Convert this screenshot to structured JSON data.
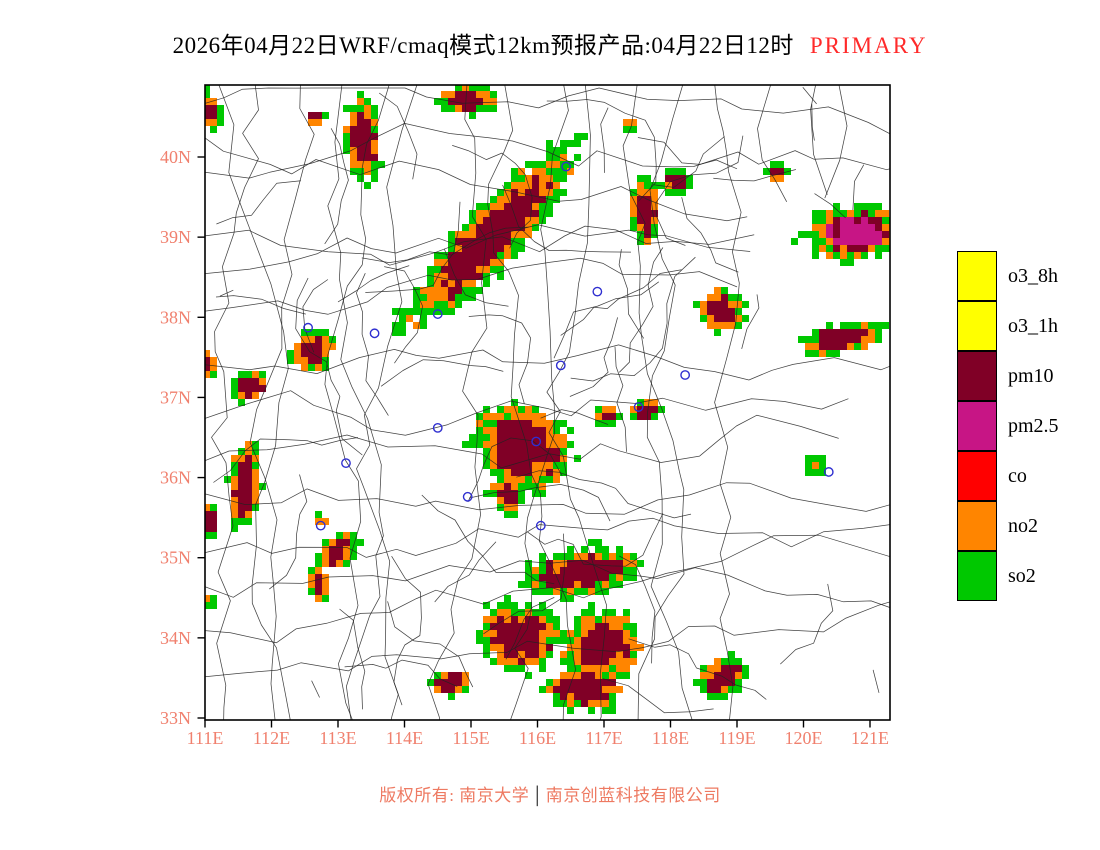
{
  "title": {
    "text": "2026年04月22日WRF/cmaq模式12km预报产品:04月22日12时",
    "tag": "PRIMARY"
  },
  "colors": {
    "title": "#000000",
    "primary_tag": "#ff2a2a",
    "axis_label": "#f0806e",
    "footer": "#ee7a62",
    "footer_separator": "#333333",
    "frame": "#000000",
    "boundary": "#222222",
    "station": "#2f2fd0",
    "map_background": "#ffffff"
  },
  "legend": {
    "items": [
      {
        "label": "o3_8h",
        "color": "#ffff00"
      },
      {
        "label": "o3_1h",
        "color": "#ffff00"
      },
      {
        "label": "pm10",
        "color": "#800026"
      },
      {
        "label": "pm2.5",
        "color": "#c71585"
      },
      {
        "label": "co",
        "color": "#ff0000"
      },
      {
        "label": "no2",
        "color": "#ff8500"
      },
      {
        "label": "so2",
        "color": "#00c800"
      }
    ]
  },
  "footer": {
    "prefix": "版权所有: 南京大学",
    "separator": "│",
    "suffix": "南京创蓝科技有限公司"
  },
  "chart_data": {
    "type": "map",
    "projection": "lonlat",
    "lon_range": [
      111,
      121.3
    ],
    "lat_range": [
      32.97,
      40.9
    ],
    "x_ticks": [
      {
        "lon": 111,
        "label": "111E"
      },
      {
        "lon": 112,
        "label": "112E"
      },
      {
        "lon": 113,
        "label": "113E"
      },
      {
        "lon": 114,
        "label": "114E"
      },
      {
        "lon": 115,
        "label": "115E"
      },
      {
        "lon": 116,
        "label": "116E"
      },
      {
        "lon": 117,
        "label": "117E"
      },
      {
        "lon": 118,
        "label": "118E"
      },
      {
        "lon": 119,
        "label": "119E"
      },
      {
        "lon": 120,
        "label": "120E"
      },
      {
        "lon": 121,
        "label": "121E"
      }
    ],
    "y_ticks": [
      {
        "lat": 40,
        "label": "40N"
      },
      {
        "lat": 39,
        "label": "39N"
      },
      {
        "lat": 38,
        "label": "38N"
      },
      {
        "lat": 37,
        "label": "37N"
      },
      {
        "lat": 36,
        "label": "36N"
      },
      {
        "lat": 35,
        "label": "35N"
      },
      {
        "lat": 34,
        "label": "34N"
      },
      {
        "lat": 33,
        "label": "33N"
      }
    ],
    "pollutant_colors": {
      "o3_8h": "#ffff00",
      "o3_1h": "#ffff00",
      "pm10": "#800026",
      "pm2.5": "#c71585",
      "co": "#ff0000",
      "no2": "#ff8500",
      "so2": "#00c800"
    },
    "region_fields": [
      "lon",
      "lat",
      "rx_deg",
      "ry_deg",
      "rot_deg",
      "primary_pollutant"
    ],
    "regions": [
      [
        115.29,
        38.99,
        1.88,
        0.45,
        -47,
        "pm10"
      ],
      [
        113.38,
        40.21,
        0.68,
        0.26,
        85,
        "pm10"
      ],
      [
        112.68,
        40.49,
        0.15,
        0.13,
        0,
        "pm10"
      ],
      [
        114.95,
        40.72,
        0.48,
        0.22,
        0,
        "pm10"
      ],
      [
        117.62,
        39.34,
        0.57,
        0.2,
        90,
        "pm10"
      ],
      [
        118.1,
        39.69,
        0.24,
        0.2,
        0,
        "pm10"
      ],
      [
        119.59,
        39.81,
        0.18,
        0.15,
        0,
        "pm10"
      ],
      [
        120.75,
        39.05,
        0.78,
        0.42,
        -5,
        "pm2.5"
      ],
      [
        118.77,
        38.08,
        0.36,
        0.33,
        0,
        "pm10"
      ],
      [
        120.58,
        37.73,
        0.68,
        0.24,
        -12,
        "pm10"
      ],
      [
        112.61,
        37.58,
        0.36,
        0.3,
        -30,
        "pm10"
      ],
      [
        111.68,
        37.14,
        0.33,
        0.21,
        -20,
        "pm10"
      ],
      [
        111.6,
        35.93,
        0.68,
        0.24,
        95,
        "pm10"
      ],
      [
        111.06,
        35.47,
        0.3,
        0.14,
        90,
        "pm10"
      ],
      [
        111.05,
        37.43,
        0.24,
        0.11,
        90,
        "pm10"
      ],
      [
        111.09,
        40.57,
        0.33,
        0.15,
        75,
        "pm10"
      ],
      [
        115.78,
        36.38,
        0.78,
        0.65,
        25,
        "pm10"
      ],
      [
        115.53,
        35.77,
        0.33,
        0.24,
        60,
        "pm10"
      ],
      [
        117.06,
        36.77,
        0.21,
        0.15,
        0,
        "pm10"
      ],
      [
        117.63,
        36.83,
        0.27,
        0.17,
        -15,
        "pm10"
      ],
      [
        112.98,
        35.08,
        0.38,
        0.23,
        -40,
        "pm10"
      ],
      [
        112.71,
        34.68,
        0.3,
        0.15,
        80,
        "pm10"
      ],
      [
        116.67,
        34.83,
        0.9,
        0.36,
        -8,
        "pm10"
      ],
      [
        115.72,
        34.01,
        0.63,
        0.51,
        15,
        "pm10"
      ],
      [
        116.97,
        33.91,
        0.63,
        0.54,
        -20,
        "pm10"
      ],
      [
        116.71,
        33.37,
        0.6,
        0.36,
        5,
        "pm10"
      ],
      [
        114.68,
        33.44,
        0.33,
        0.21,
        -10,
        "pm10"
      ],
      [
        118.79,
        33.51,
        0.39,
        0.3,
        -35,
        "pm10"
      ],
      [
        120.19,
        36.14,
        0.18,
        0.15,
        0,
        "no2"
      ],
      [
        117.38,
        40.42,
        0.14,
        0.12,
        0,
        "so2"
      ],
      [
        111.05,
        34.47,
        0.15,
        0.12,
        0,
        "so2"
      ],
      [
        112.76,
        35.46,
        0.12,
        0.11,
        0,
        "so2"
      ]
    ],
    "stations": [
      [
        116.43,
        39.88
      ],
      [
        114.5,
        38.04
      ],
      [
        113.55,
        37.8
      ],
      [
        116.9,
        38.32
      ],
      [
        112.55,
        37.87
      ],
      [
        116.35,
        37.4
      ],
      [
        118.22,
        37.28
      ],
      [
        117.52,
        36.88
      ],
      [
        115.98,
        36.45
      ],
      [
        114.5,
        36.62
      ],
      [
        113.12,
        36.18
      ],
      [
        114.95,
        35.76
      ],
      [
        112.74,
        35.4
      ],
      [
        116.05,
        35.4
      ],
      [
        120.38,
        36.07
      ]
    ]
  }
}
